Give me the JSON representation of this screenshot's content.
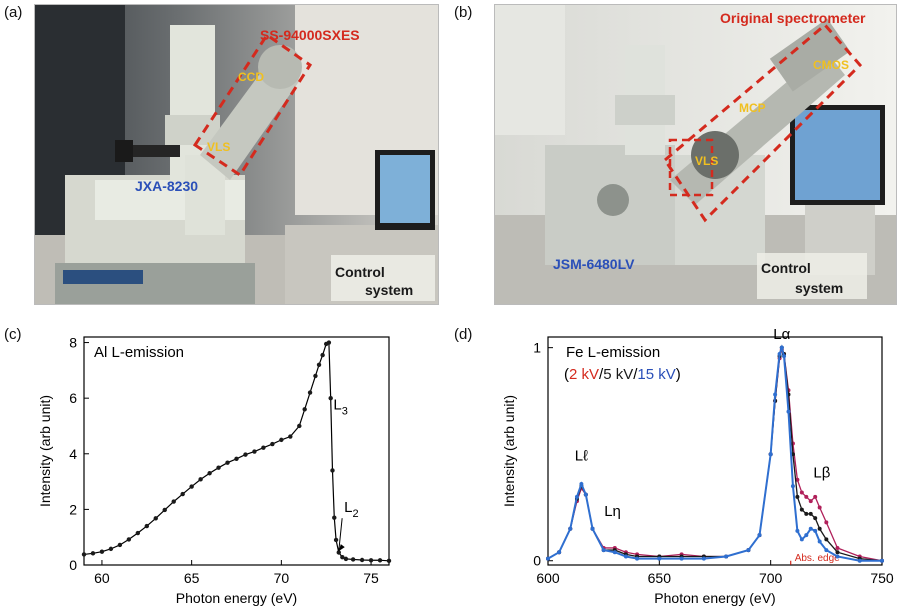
{
  "panels": {
    "a": {
      "letter": "(a)",
      "labels": {
        "spectrometer": "SS-94000SXES",
        "ccd": "CCD",
        "vls": "VLS",
        "instrument": "JXA-8230",
        "control_line1": "Control",
        "control_line2": "system"
      }
    },
    "b": {
      "letter": "(b)",
      "labels": {
        "spectrometer": "Original spectrometer",
        "cmos": "CMOS",
        "mcp": "MCP",
        "vls": "VLS",
        "instrument": "JSM-6480LV",
        "control_line1": "Control",
        "control_line2": "system"
      }
    },
    "c": {
      "letter": "(c)"
    },
    "d": {
      "letter": "(d)"
    }
  },
  "colors": {
    "annotation_red": "#d42a1e",
    "annotation_blue": "#2a4fb8",
    "annotation_yellow": "#f0c020",
    "series_2kv": "#b0205a",
    "series_5kv": "#1a1a1a",
    "series_15kv": "#2f6fd0",
    "abs_edge": "#d42a1e"
  },
  "chart_data": [
    {
      "type": "scatter",
      "title": "Al L-emission",
      "xlabel": "Photon energy (eV)",
      "ylabel": "Intensity (arb unit)",
      "xlim": [
        59,
        76
      ],
      "ylim": [
        0,
        8.2
      ],
      "xticks": [
        60,
        65,
        70,
        75
      ],
      "yticks": [
        0,
        2,
        4,
        6,
        8
      ],
      "grid": false,
      "annotations": [
        {
          "text": "L",
          "sub": "3",
          "x": 72.9,
          "y": 5.6
        },
        {
          "text": "L",
          "sub": "2",
          "x": 73.5,
          "y": 1.9,
          "arrow_to": [
            73.2,
            0.5
          ]
        }
      ],
      "series": [
        {
          "x": [
            59,
            59.5,
            60,
            60.5,
            61,
            61.5,
            62,
            62.5,
            63,
            63.5,
            64,
            64.5,
            65,
            65.5,
            66,
            66.5,
            67,
            67.5,
            68,
            68.5,
            69,
            69.5,
            70,
            70.5,
            71,
            71.3,
            71.6,
            71.9,
            72.1,
            72.3,
            72.5,
            72.65,
            72.75,
            72.85,
            72.95,
            73.05,
            73.2,
            73.4,
            73.6,
            74,
            74.5,
            75,
            75.5,
            76
          ],
          "y": [
            0.38,
            0.42,
            0.48,
            0.58,
            0.72,
            0.92,
            1.15,
            1.4,
            1.68,
            1.98,
            2.28,
            2.55,
            2.82,
            3.08,
            3.3,
            3.5,
            3.68,
            3.82,
            3.97,
            4.08,
            4.22,
            4.35,
            4.5,
            4.62,
            5.0,
            5.6,
            6.2,
            6.8,
            7.2,
            7.55,
            7.95,
            8.0,
            6.0,
            3.4,
            1.7,
            0.9,
            0.45,
            0.28,
            0.22,
            0.2,
            0.18,
            0.17,
            0.17,
            0.15
          ]
        }
      ]
    },
    {
      "type": "line",
      "title": "Fe L-emission",
      "subtitle_open": "(",
      "subtitle_close": ")",
      "subtitle_sep": "/",
      "xlabel": "Photon energy (eV)",
      "ylabel": "Intensity (arb unit)",
      "xlim": [
        600,
        750
      ],
      "ylim": [
        -0.02,
        1.05
      ],
      "xticks": [
        600,
        650,
        700,
        750
      ],
      "yticks": [
        0,
        1
      ],
      "grid": false,
      "legend": "top-left",
      "peak_labels": [
        {
          "text": "Lℓ",
          "x": 615,
          "y": 0.47
        },
        {
          "text": "Lη",
          "x": 629,
          "y": 0.21
        },
        {
          "text": "Lα",
          "x": 705,
          "y": 1.04
        },
        {
          "text": "Lβ",
          "x": 723,
          "y": 0.39
        }
      ],
      "abs_edge": {
        "text": "Abs. edge",
        "x": 709
      },
      "series": [
        {
          "name": "2 kV",
          "x": [
            600,
            605,
            610,
            613,
            615,
            617,
            620,
            625,
            630,
            635,
            640,
            650,
            660,
            670,
            680,
            690,
            695,
            700,
            702,
            704,
            705,
            706,
            708,
            710,
            712,
            714,
            716,
            718,
            720,
            722,
            725,
            730,
            740,
            750
          ],
          "y": [
            0.01,
            0.04,
            0.15,
            0.28,
            0.34,
            0.31,
            0.15,
            0.06,
            0.06,
            0.04,
            0.03,
            0.02,
            0.03,
            0.02,
            0.02,
            0.05,
            0.12,
            0.5,
            0.75,
            0.95,
            0.99,
            0.97,
            0.8,
            0.55,
            0.38,
            0.32,
            0.3,
            0.28,
            0.3,
            0.25,
            0.18,
            0.06,
            0.02,
            0.0
          ]
        },
        {
          "name": "5 kV",
          "x": [
            600,
            605,
            610,
            613,
            615,
            617,
            620,
            625,
            630,
            635,
            640,
            650,
            660,
            670,
            680,
            690,
            695,
            700,
            702,
            704,
            705,
            706,
            708,
            710,
            712,
            714,
            716,
            718,
            720,
            722,
            725,
            730,
            740,
            750
          ],
          "y": [
            0.01,
            0.04,
            0.15,
            0.29,
            0.35,
            0.31,
            0.15,
            0.05,
            0.05,
            0.03,
            0.02,
            0.02,
            0.02,
            0.02,
            0.02,
            0.05,
            0.12,
            0.5,
            0.75,
            0.96,
            1.0,
            0.97,
            0.78,
            0.5,
            0.3,
            0.24,
            0.22,
            0.22,
            0.2,
            0.15,
            0.1,
            0.04,
            0.01,
            0.0
          ]
        },
        {
          "name": "15 kV",
          "x": [
            600,
            605,
            610,
            613,
            615,
            617,
            620,
            625,
            630,
            635,
            640,
            650,
            660,
            670,
            680,
            690,
            695,
            700,
            702,
            704,
            705,
            706,
            708,
            710,
            712,
            714,
            716,
            718,
            720,
            722,
            725,
            730,
            740,
            750
          ],
          "y": [
            0.01,
            0.04,
            0.15,
            0.3,
            0.36,
            0.31,
            0.15,
            0.05,
            0.04,
            0.02,
            0.01,
            0.01,
            0.01,
            0.01,
            0.02,
            0.05,
            0.12,
            0.5,
            0.78,
            0.97,
            1.0,
            0.96,
            0.7,
            0.35,
            0.14,
            0.1,
            0.12,
            0.15,
            0.14,
            0.09,
            0.05,
            0.02,
            0.0,
            0.0
          ]
        }
      ]
    }
  ]
}
